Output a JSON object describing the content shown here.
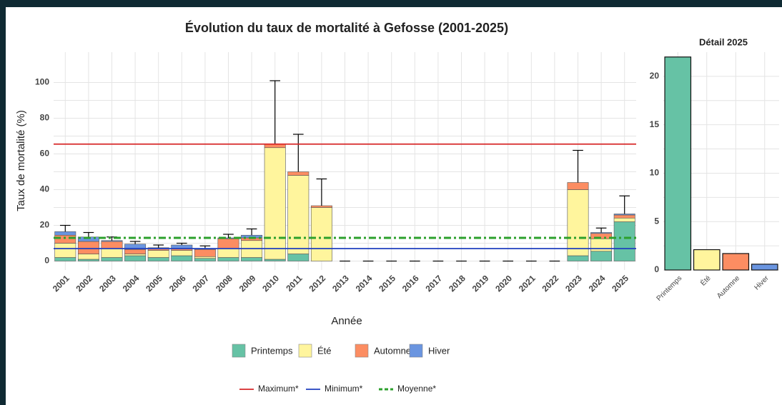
{
  "chart_data": [
    {
      "type": "bar",
      "stacked": true,
      "title": "Évolution du taux de mortalité à Gefosse (2001-2025)",
      "x_label": "Année",
      "y_label": "Taux de mortalité (%)",
      "categories": [
        "2001",
        "2002",
        "2003",
        "2004",
        "2005",
        "2006",
        "2007",
        "2008",
        "2009",
        "2010",
        "2011",
        "2012",
        "2013",
        "2014",
        "2015",
        "2016",
        "2017",
        "2018",
        "2019",
        "2020",
        "2021",
        "2022",
        "2023",
        "2024",
        "2025"
      ],
      "series": [
        {
          "name": "Printemps",
          "color": "#66c2a5",
          "values": [
            2,
            1,
            2,
            3,
            2,
            3,
            1.5,
            2,
            2,
            1,
            4,
            0,
            0,
            0,
            0,
            0,
            0,
            0,
            0,
            0,
            0,
            0,
            3,
            5.5,
            22
          ]
        },
        {
          "name": "Été",
          "color": "#fff59d",
          "values": [
            8,
            3,
            5,
            1,
            4,
            3,
            1,
            5,
            9.5,
            62.5,
            44,
            30,
            0,
            0,
            0,
            0,
            0,
            0,
            0,
            0,
            0,
            0,
            37,
            7,
            2.1
          ]
        },
        {
          "name": "Automne",
          "color": "#fc8d62",
          "values": [
            4.5,
            7,
            4,
            2.5,
            1,
            1,
            4,
            5.5,
            1.5,
            2,
            2,
            1,
            0,
            0,
            0,
            0,
            0,
            0,
            0,
            0,
            0,
            0,
            4,
            3,
            1.7
          ]
        },
        {
          "name": "Hiver",
          "color": "#6a95e0",
          "values": [
            2,
            2.5,
            0.5,
            3,
            0.5,
            2,
            0.5,
            0.5,
            1.5,
            0,
            0,
            0,
            0,
            0,
            0,
            0,
            0,
            0,
            0,
            0,
            0,
            0,
            0,
            0.5,
            0.6
          ]
        }
      ],
      "error_bars": [
        20,
        16,
        13.5,
        11,
        9,
        10,
        8.5,
        15,
        18,
        101,
        71,
        46,
        0,
        0,
        0,
        0,
        0,
        0,
        0,
        0,
        0,
        0,
        62,
        18.5,
        36.5
      ],
      "reference_lines": [
        {
          "name": "Maximum*",
          "color": "#d62728",
          "value": 65.5,
          "style": "solid"
        },
        {
          "name": "Minimum*",
          "color": "#1f3fbf",
          "value": 7,
          "style": "solid"
        },
        {
          "name": "Moyenne*",
          "color": "#2ca02c",
          "value": 13,
          "style": "dashdot"
        }
      ],
      "ylim": [
        -5,
        117
      ],
      "yticks": [
        0,
        20,
        40,
        60,
        80,
        100
      ],
      "grid": true
    },
    {
      "type": "bar",
      "title": "Détail 2025",
      "categories": [
        "Printemps",
        "Été",
        "Automne",
        "Hiver"
      ],
      "values": [
        22,
        2.1,
        1.7,
        0.6
      ],
      "colors": [
        "#66c2a5",
        "#fff59d",
        "#fc8d62",
        "#6a95e0"
      ],
      "ylim": [
        0,
        22.5
      ],
      "yticks": [
        0,
        5,
        10,
        15,
        20
      ],
      "grid": true
    }
  ]
}
